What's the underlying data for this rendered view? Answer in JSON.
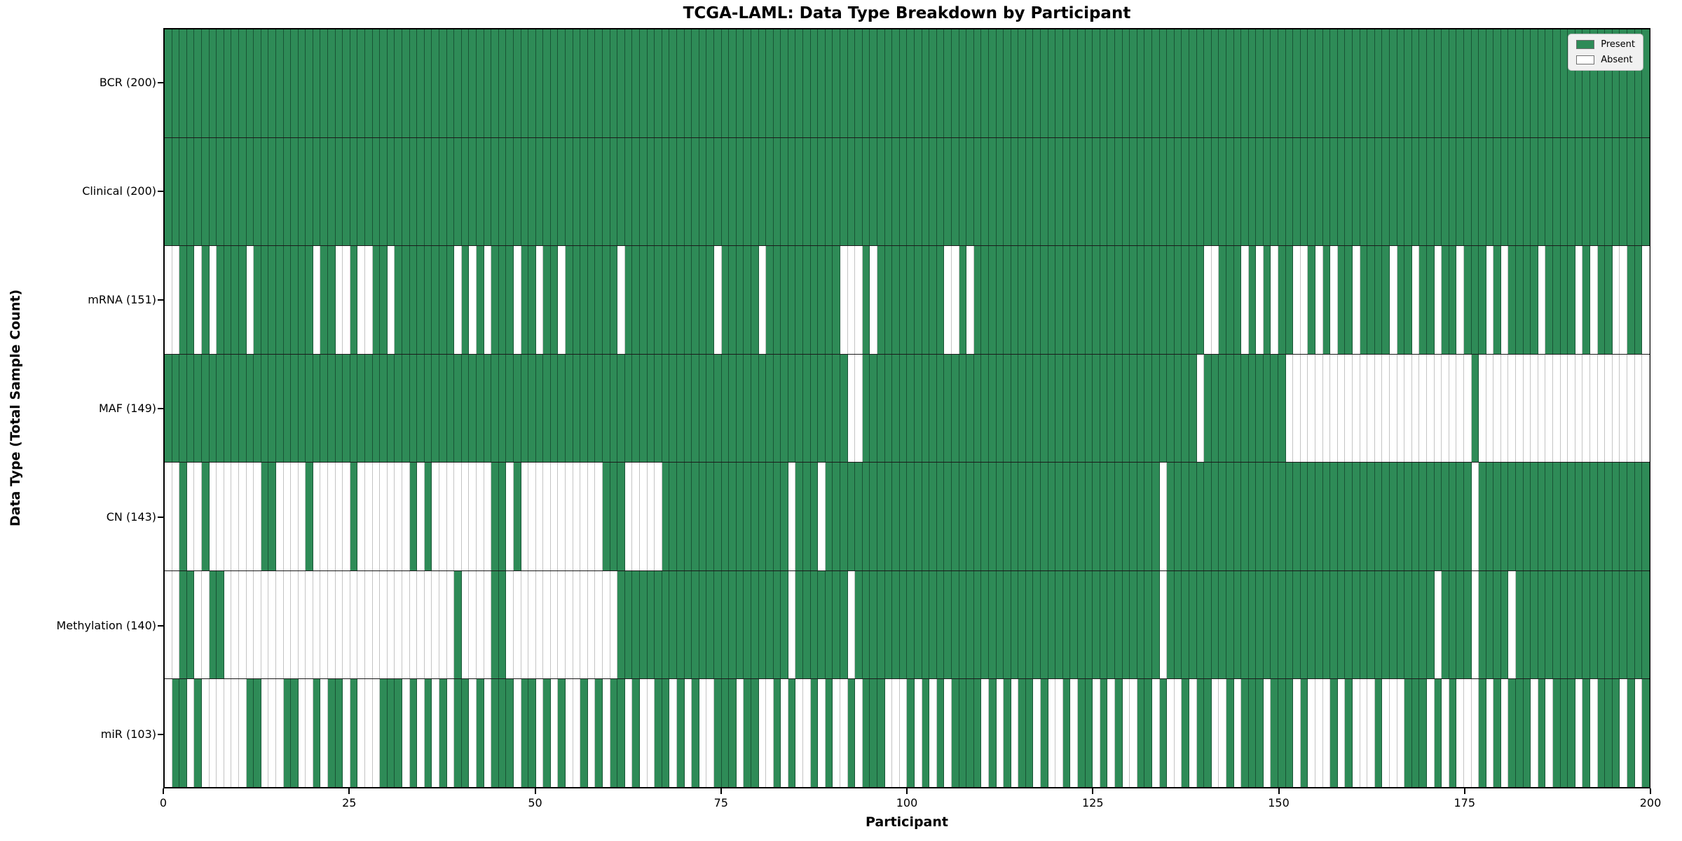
{
  "chart_data": {
    "type": "heatmap",
    "title": "TCGA-LAML: Data Type Breakdown by Participant",
    "xlabel": "Participant",
    "ylabel": "Data Type (Total Sample Count)",
    "x_range": [
      0,
      200
    ],
    "n_participants": 200,
    "x_ticks": [
      0,
      25,
      50,
      75,
      100,
      125,
      150,
      175,
      200
    ],
    "grid": false,
    "legend_position": "upper right",
    "legend": [
      {
        "label": "Present",
        "color": "#2e8b57"
      },
      {
        "label": "Absent",
        "color": "#ffffff"
      }
    ],
    "colors": {
      "present": "#2e8b57",
      "absent": "#ffffff",
      "cell_edge_present": "#12301f",
      "cell_edge_absent": "#c4c4c4",
      "plot_border": "#000000",
      "background": "#ffffff"
    },
    "rows": [
      {
        "label": "BCR (200)",
        "data_type": "BCR",
        "present_count": 200,
        "absent_participants": []
      },
      {
        "label": "Clinical (200)",
        "data_type": "Clinical",
        "present_count": 200,
        "absent_participants": []
      },
      {
        "label": "mRNA (151)",
        "data_type": "mRNA",
        "present_count": 151,
        "absent_participants": [
          0,
          1,
          4,
          6,
          11,
          20,
          23,
          24,
          26,
          27,
          30,
          39,
          41,
          43,
          47,
          50,
          53,
          61,
          74,
          80,
          91,
          92,
          93,
          95,
          105,
          106,
          108,
          140,
          141,
          145,
          147,
          149,
          152,
          153,
          155,
          157,
          160,
          165,
          168,
          171,
          174,
          178,
          180,
          185,
          190,
          192,
          195,
          196,
          199
        ]
      },
      {
        "label": "MAF (149)",
        "data_type": "MAF",
        "present_count": 149,
        "absent_participants": [
          92,
          93,
          139,
          151,
          152,
          153,
          154,
          155,
          156,
          157,
          158,
          159,
          160,
          161,
          162,
          163,
          164,
          165,
          166,
          167,
          168,
          169,
          170,
          171,
          172,
          173,
          174,
          175,
          177,
          178,
          179,
          180,
          181,
          182,
          183,
          184,
          185,
          186,
          187,
          188,
          189,
          190,
          191,
          192,
          193,
          194,
          195,
          196,
          197,
          198,
          199
        ]
      },
      {
        "label": "CN (143)",
        "data_type": "CN",
        "present_count": 143,
        "absent_participants": [
          0,
          1,
          3,
          4,
          6,
          7,
          8,
          9,
          10,
          11,
          12,
          15,
          16,
          17,
          18,
          20,
          21,
          22,
          23,
          24,
          26,
          27,
          28,
          29,
          30,
          31,
          32,
          34,
          36,
          37,
          38,
          39,
          40,
          41,
          42,
          43,
          46,
          48,
          49,
          50,
          51,
          52,
          53,
          54,
          55,
          56,
          57,
          58,
          62,
          63,
          64,
          65,
          66,
          84,
          88,
          134,
          176
        ]
      },
      {
        "label": "Methylation (140)",
        "data_type": "Methylation",
        "present_count": 140,
        "absent_participants": [
          0,
          1,
          4,
          5,
          8,
          9,
          10,
          11,
          12,
          13,
          14,
          15,
          16,
          17,
          18,
          19,
          20,
          21,
          22,
          23,
          24,
          25,
          26,
          27,
          28,
          29,
          30,
          31,
          32,
          33,
          34,
          35,
          36,
          37,
          38,
          40,
          41,
          42,
          43,
          46,
          47,
          48,
          49,
          50,
          51,
          52,
          53,
          54,
          55,
          56,
          57,
          58,
          59,
          60,
          84,
          92,
          134,
          171,
          176,
          181
        ]
      },
      {
        "label": "miR (103)",
        "data_type": "miR",
        "present_count": 103,
        "absent_participants": [
          0,
          3,
          5,
          6,
          7,
          8,
          9,
          10,
          13,
          14,
          15,
          18,
          19,
          21,
          24,
          26,
          27,
          28,
          32,
          34,
          36,
          38,
          41,
          43,
          47,
          50,
          52,
          54,
          55,
          57,
          59,
          62,
          64,
          65,
          68,
          70,
          72,
          73,
          77,
          80,
          81,
          83,
          85,
          86,
          88,
          90,
          91,
          93,
          97,
          98,
          99,
          101,
          103,
          105,
          110,
          112,
          114,
          117,
          119,
          120,
          122,
          125,
          127,
          129,
          130,
          133,
          135,
          136,
          138,
          141,
          142,
          144,
          148,
          152,
          154,
          155,
          156,
          158,
          160,
          161,
          162,
          164,
          165,
          166,
          170,
          172,
          174,
          175,
          176,
          178,
          180,
          184,
          186,
          190,
          192,
          196,
          198
        ]
      }
    ]
  }
}
